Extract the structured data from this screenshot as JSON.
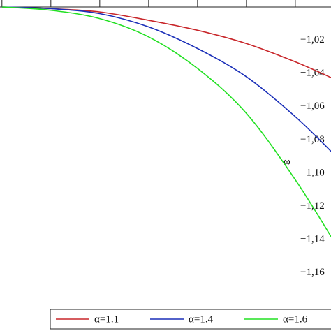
{
  "chart_data": {
    "type": "line",
    "annotations": [
      "ω"
    ],
    "x": [
      0,
      1,
      2,
      3,
      4,
      5,
      6,
      6.77
    ],
    "series": [
      {
        "name": "α=1.1",
        "color": "#c8262a",
        "values": [
          -1.0,
          -1.001,
          -1.003,
          -1.008,
          -1.014,
          -1.022,
          -1.033,
          -1.043
        ]
      },
      {
        "name": "α=1.4",
        "color": "#1a2fb8",
        "values": [
          -1.0,
          -1.001,
          -1.004,
          -1.012,
          -1.025,
          -1.042,
          -1.066,
          -1.088
        ]
      },
      {
        "name": "α=1.6",
        "color": "#22e022",
        "values": [
          -1.0,
          -1.002,
          -1.007,
          -1.018,
          -1.037,
          -1.064,
          -1.104,
          -1.14
        ]
      }
    ],
    "xlim": [
      -0.04,
      6.73
    ],
    "xticks": [
      0,
      1,
      2,
      3,
      4,
      5,
      6
    ],
    "ylim": [
      -1.195,
      -1.0
    ],
    "yticks": [
      {
        "value": -1.02,
        "label": "−1,02"
      },
      {
        "value": -1.04,
        "label": "−1,04"
      },
      {
        "value": -1.06,
        "label": "−1,06"
      },
      {
        "value": -1.08,
        "label": "−1,08"
      },
      {
        "value": -1.1,
        "label": "−1,10"
      },
      {
        "value": -1.12,
        "label": "−1,12"
      },
      {
        "value": -1.14,
        "label": "−1,14"
      },
      {
        "value": -1.16,
        "label": "−1,16"
      }
    ]
  }
}
